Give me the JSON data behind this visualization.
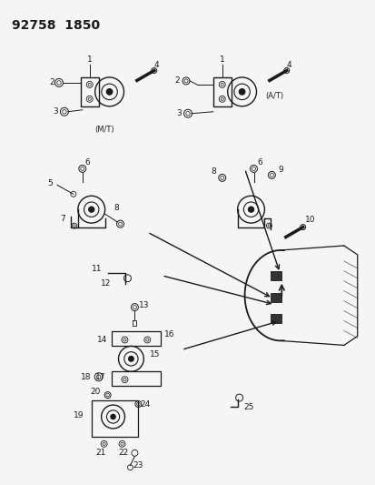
{
  "title1": "92758",
  "title2": "1850",
  "bg_color": "#f5f5f5",
  "line_color": "#1a1a1a",
  "fig_width": 4.14,
  "fig_height": 5.33,
  "dpi": 100
}
